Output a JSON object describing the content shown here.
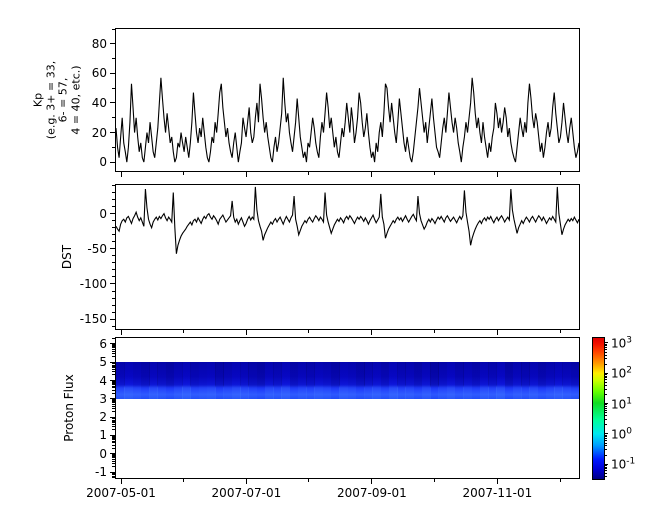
{
  "figure": {
    "background": "#ffffff",
    "axis_color": "#000000",
    "line_color": "#000000"
  },
  "x_axis": {
    "tick_labels": [
      "2007-05-01",
      "2007-07-01",
      "2007-09-01",
      "2007-11-01"
    ],
    "major_frac": [
      0.0108,
      0.2817,
      0.5527,
      0.8237
    ],
    "minor_frac": [
      0.1462,
      0.4151,
      0.6882,
      0.9591
    ],
    "x_start": "2007-04-28",
    "x_end": "2007-12-10"
  },
  "chart_data": [
    {
      "type": "line",
      "name": "kp-index",
      "ylabel_lines": [
        "Kp",
        "(e.g. 3+ = 33,",
        "6- = 57,",
        "4 = 40, etc.)"
      ],
      "yticks": [
        0,
        20,
        40,
        60,
        80
      ],
      "ytick_labels": [
        "0",
        "20",
        "40",
        "60",
        "80"
      ],
      "minor_step": 10,
      "ylim": [
        -6,
        90
      ],
      "grid": false,
      "values": [
        23,
        10,
        3,
        17,
        30,
        13,
        7,
        0,
        10,
        27,
        53,
        37,
        20,
        30,
        17,
        7,
        13,
        3,
        0,
        10,
        20,
        13,
        27,
        17,
        7,
        3,
        13,
        23,
        40,
        57,
        43,
        30,
        20,
        33,
        23,
        13,
        17,
        7,
        0,
        3,
        13,
        10,
        20,
        13,
        7,
        17,
        10,
        3,
        13,
        27,
        47,
        33,
        20,
        13,
        23,
        17,
        30,
        20,
        10,
        3,
        0,
        7,
        17,
        13,
        27,
        20,
        33,
        47,
        53,
        37,
        27,
        17,
        23,
        13,
        7,
        3,
        13,
        20,
        10,
        0,
        7,
        13,
        30,
        23,
        17,
        27,
        37,
        20,
        13,
        17,
        30,
        40,
        27,
        53,
        43,
        30,
        20,
        27,
        17,
        10,
        3,
        0,
        10,
        17,
        7,
        13,
        23,
        33,
        57,
        40,
        27,
        33,
        20,
        13,
        7,
        17,
        27,
        43,
        30,
        17,
        10,
        3,
        7,
        0,
        13,
        10,
        20,
        30,
        23,
        13,
        7,
        3,
        17,
        27,
        20,
        33,
        47,
        37,
        23,
        30,
        20,
        10,
        17,
        7,
        3,
        13,
        23,
        17,
        27,
        40,
        30,
        20,
        37,
        27,
        13,
        20,
        30,
        47,
        40,
        27,
        17,
        23,
        33,
        20,
        10,
        3,
        7,
        0,
        13,
        7,
        20,
        27,
        17,
        33,
        53,
        50,
        37,
        27,
        40,
        30,
        20,
        13,
        27,
        43,
        33,
        23,
        13,
        7,
        17,
        10,
        3,
        0,
        7,
        17,
        27,
        37,
        50,
        40,
        30,
        20,
        27,
        13,
        23,
        33,
        43,
        30,
        20,
        10,
        7,
        3,
        13,
        23,
        30,
        20,
        33,
        47,
        37,
        27,
        20,
        30,
        23,
        13,
        7,
        0,
        10,
        17,
        27,
        20,
        30,
        40,
        57,
        47,
        33,
        23,
        30,
        20,
        13,
        27,
        17,
        10,
        3,
        13,
        7,
        17,
        23,
        40,
        33,
        23,
        30,
        20,
        27,
        37,
        30,
        17,
        23,
        13,
        7,
        3,
        0,
        10,
        20,
        30,
        23,
        17,
        27,
        20,
        40,
        53,
        43,
        30,
        23,
        33,
        27,
        17,
        7,
        13,
        3,
        10,
        20,
        27,
        17,
        23,
        37,
        47,
        33,
        23,
        13,
        17,
        27,
        40,
        30,
        20,
        13,
        23,
        30,
        20,
        10,
        3,
        7,
        13
      ]
    },
    {
      "type": "line",
      "name": "dst-index",
      "ylabel": "DST",
      "yticks": [
        0,
        -50,
        -100,
        -150
      ],
      "ytick_labels": [
        "0",
        "-50",
        "-100",
        "-150"
      ],
      "minor_step": 10,
      "ylim": [
        -164,
        40.7
      ],
      "grid": false,
      "values": [
        -18,
        -22,
        -25,
        -15,
        -10,
        -8,
        -12,
        -6,
        -4,
        -9,
        -14,
        -7,
        -3,
        2,
        -5,
        -10,
        -6,
        -12,
        -18,
        35,
        8,
        -8,
        -15,
        -20,
        -12,
        -8,
        -5,
        -9,
        -4,
        -7,
        -3,
        0,
        -6,
        -10,
        -5,
        -8,
        -12,
        30,
        -20,
        -57,
        -45,
        -38,
        -32,
        -28,
        -25,
        -22,
        -18,
        -15,
        -12,
        -16,
        -10,
        -8,
        -12,
        -6,
        -10,
        -14,
        -8,
        -4,
        -7,
        -2,
        0,
        -5,
        -8,
        -3,
        -6,
        -10,
        -15,
        -8,
        -5,
        -2,
        -7,
        -12,
        -9,
        -6,
        -3,
        18,
        -5,
        -12,
        -8,
        -15,
        -10,
        -6,
        -12,
        -18,
        -14,
        -8,
        -4,
        -9,
        -5,
        -8,
        38,
        5,
        -10,
        -18,
        -25,
        -38,
        -30,
        -25,
        -20,
        -16,
        -12,
        -15,
        -10,
        -7,
        -12,
        -8,
        -5,
        -10,
        -15,
        -9,
        -4,
        -8,
        -12,
        -6,
        -2,
        25,
        -8,
        -18,
        -30,
        -24,
        -18,
        -14,
        -10,
        -13,
        -8,
        -5,
        -9,
        -12,
        -7,
        -3,
        -6,
        -10,
        -5,
        -8,
        -12,
        30,
        -2,
        -12,
        -20,
        -28,
        -22,
        -16,
        -12,
        -8,
        -11,
        -6,
        -9,
        -13,
        -7,
        -4,
        -8,
        -3,
        -6,
        -10,
        -14,
        -9,
        -5,
        -8,
        -4,
        -7,
        -11,
        -6,
        -10,
        -15,
        -10,
        -6,
        -2,
        -8,
        -13,
        -9,
        -5,
        28,
        -5,
        -15,
        -35,
        -28,
        -22,
        -18,
        -14,
        -10,
        -13,
        -8,
        -5,
        -9,
        -6,
        -11,
        -7,
        -3,
        -8,
        -12,
        -8,
        -4,
        -1,
        -6,
        -10,
        25,
        0,
        -10,
        -16,
        -22,
        -18,
        -12,
        -8,
        -12,
        -7,
        -10,
        -14,
        -9,
        -5,
        -8,
        -4,
        -8,
        -12,
        -6,
        -3,
        -7,
        -11,
        -8,
        -5,
        -9,
        -13,
        -8,
        -4,
        -8,
        -3,
        33,
        2,
        -12,
        -25,
        -45,
        -35,
        -28,
        -22,
        -17,
        -13,
        -10,
        -14,
        -9,
        -6,
        -10,
        -5,
        -8,
        -4,
        -9,
        -13,
        -8,
        -5,
        -10,
        -6,
        -3,
        -7,
        -12,
        -8,
        -5,
        -9,
        35,
        5,
        -8,
        -18,
        -28,
        -20,
        -15,
        -10,
        -14,
        -9,
        -5,
        -8,
        -12,
        -7,
        -4,
        -8,
        -12,
        -7,
        -3,
        -6,
        -10,
        -5,
        -9,
        -14,
        -10,
        -6,
        -9,
        -4,
        -8,
        -12,
        38,
        0,
        -15,
        -30,
        -22,
        -16,
        -12,
        -8,
        -11,
        -7,
        -10,
        -5,
        -9,
        -13,
        -8
      ]
    },
    {
      "type": "heatmap",
      "name": "proton-flux-spectrogram",
      "ylabel": "Proton Flux",
      "yticks": [
        6,
        5,
        4,
        3,
        2,
        1,
        0,
        -1
      ],
      "ytick_labels": [
        "6",
        "5",
        "4",
        "3",
        "2",
        "1",
        "0",
        "-1"
      ],
      "log_minor_ticks": true,
      "ylim": [
        -1.32,
        6.32
      ],
      "band": {
        "v_top": 5,
        "v_bottom": 3,
        "description": "continuous blue band (flux ~0.05-0.6, low end of jet colormap)",
        "base_gradient": [
          [
            0.0,
            "#0505be"
          ],
          [
            0.4,
            "#0808d0"
          ],
          [
            0.6,
            "#0e18e8"
          ],
          [
            0.75,
            "#1e3cfa"
          ],
          [
            0.88,
            "#2b55ff"
          ],
          [
            1.0,
            "#1e46f5"
          ]
        ],
        "column_shade": [
          0.55,
          0.3,
          0.5,
          0.75,
          0.4,
          0.6,
          0.85,
          0.5,
          0.3,
          0.65,
          0.5,
          0.4,
          0.8,
          0.6,
          0.35,
          0.5,
          0.7,
          0.9,
          0.45,
          0.6,
          0.3,
          0.75,
          0.5,
          0.65,
          0.4,
          0.55,
          0.85,
          0.35,
          0.5,
          0.8,
          0.6,
          0.4,
          0.7,
          0.3,
          0.6,
          0.5,
          0.8,
          0.45,
          0.9,
          0.6,
          0.35,
          0.7,
          0.5,
          0.75,
          0.4,
          0.6,
          0.3,
          0.85,
          0.5,
          0.7,
          0.45,
          0.8,
          0.55,
          0.35,
          0.5,
          0.7
        ]
      },
      "colorbar": {
        "scale": "log",
        "decade_ticks": [
          3,
          2,
          1,
          0,
          -1
        ],
        "labels": [
          {
            "base": "10",
            "exp": "3"
          },
          {
            "base": "10",
            "exp": "2"
          },
          {
            "base": "10",
            "exp": "1"
          },
          {
            "base": "10",
            "exp": "0"
          },
          {
            "base": "10",
            "exp": "-1"
          }
        ],
        "log_range": [
          -1.487,
          3.163
        ],
        "jet_stops": [
          [
            0.0,
            "#000085"
          ],
          [
            0.07,
            "#0000d5"
          ],
          [
            0.14,
            "#0018ff"
          ],
          [
            0.24,
            "#00a0ff"
          ],
          [
            0.32,
            "#00e8f0"
          ],
          [
            0.42,
            "#00ff99"
          ],
          [
            0.54,
            "#11dd22"
          ],
          [
            0.62,
            "#66ff00"
          ],
          [
            0.7,
            "#ccff00"
          ],
          [
            0.75,
            "#ffee00"
          ],
          [
            0.82,
            "#ff9900"
          ],
          [
            0.9,
            "#ff4400"
          ],
          [
            0.96,
            "#f01000"
          ],
          [
            1.0,
            "#e00000"
          ]
        ]
      }
    }
  ]
}
